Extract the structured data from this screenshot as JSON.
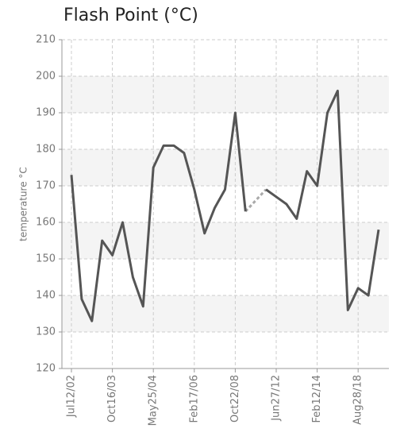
{
  "chart_data": {
    "type": "line",
    "title": "Flash Point (°C)",
    "y_label": "temperature °C",
    "categories": [
      "Jul12/02",
      null,
      null,
      null,
      "Oct16/03",
      null,
      null,
      null,
      "May25/04",
      null,
      null,
      null,
      "Feb17/06",
      null,
      null,
      null,
      "Oct22/08",
      null,
      null,
      null,
      "Jun27/12",
      null,
      null,
      null,
      "Feb12/14",
      null,
      null,
      null,
      "Aug28/18",
      null,
      null
    ],
    "series": [
      {
        "name": "Flash Point",
        "color": "#555555",
        "values": [
          173,
          139,
          133,
          155,
          151,
          160,
          145,
          137,
          175,
          181,
          181,
          179,
          169,
          157,
          164,
          169,
          190,
          163,
          null,
          169,
          167,
          165,
          161,
          174,
          170,
          190,
          196,
          136,
          142,
          140,
          158
        ]
      }
    ],
    "ylim": [
      120,
      210
    ],
    "yticks": [
      120,
      130,
      140,
      150,
      160,
      170,
      180,
      190,
      200,
      210
    ],
    "grid": true
  }
}
